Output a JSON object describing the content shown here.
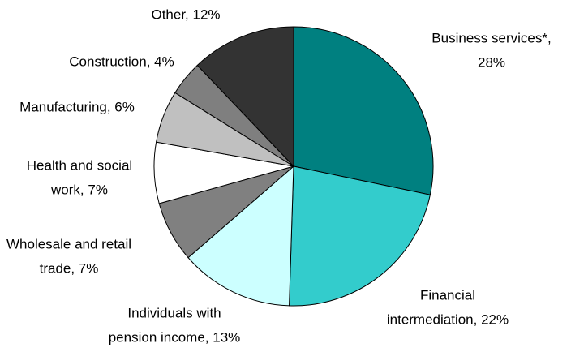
{
  "chart_data": {
    "type": "pie",
    "values": [
      28,
      22,
      13,
      7,
      7,
      6,
      4,
      12
    ],
    "value_labels": [
      [
        "Business services*,",
        "28%"
      ],
      [
        "Financial",
        "intermediation, 22%"
      ],
      [
        "Individuals with",
        "pension income, 13%"
      ],
      [
        "Wholesale and retail",
        "trade, 7%"
      ],
      [
        "Health and social",
        "work, 7%"
      ],
      [
        "Manufacturing, 6%"
      ],
      [
        "Construction, 4%"
      ],
      [
        "Other, 12%"
      ]
    ],
    "colors": [
      "#008080",
      "#33cccc",
      "#ccffff",
      "#808080",
      "#ffffff",
      "#c0c0c0",
      "#7f7f7f",
      "#333333"
    ]
  }
}
